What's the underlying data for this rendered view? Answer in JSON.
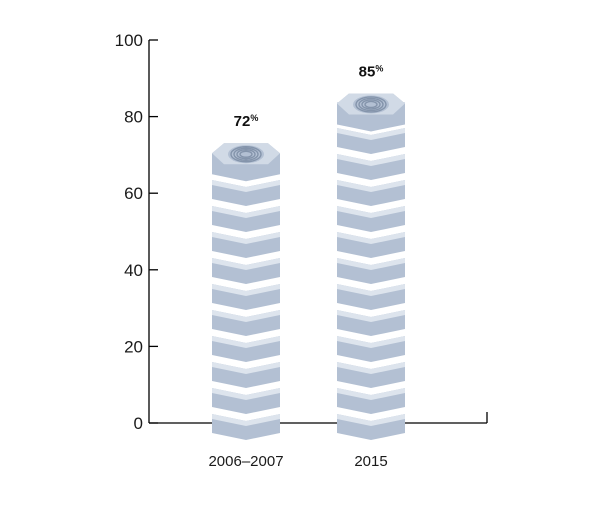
{
  "chart_data": {
    "type": "bar",
    "categories": [
      "2006–2007",
      "2015"
    ],
    "values": [
      72,
      85
    ],
    "value_labels": [
      "72",
      "85"
    ],
    "value_unit": "%",
    "ylim": [
      0,
      100
    ],
    "yticks": [
      "0",
      "20",
      "40",
      "60",
      "80",
      "100"
    ],
    "title": "",
    "xlabel": "",
    "ylabel": "",
    "grid": false,
    "legend": "none",
    "colors": {
      "nut_face": "#b3c0d3",
      "nut_top": "#d1dae6",
      "nut_groove": "#dde4ed",
      "thread": "#8494ab",
      "axis": "#000000"
    }
  }
}
